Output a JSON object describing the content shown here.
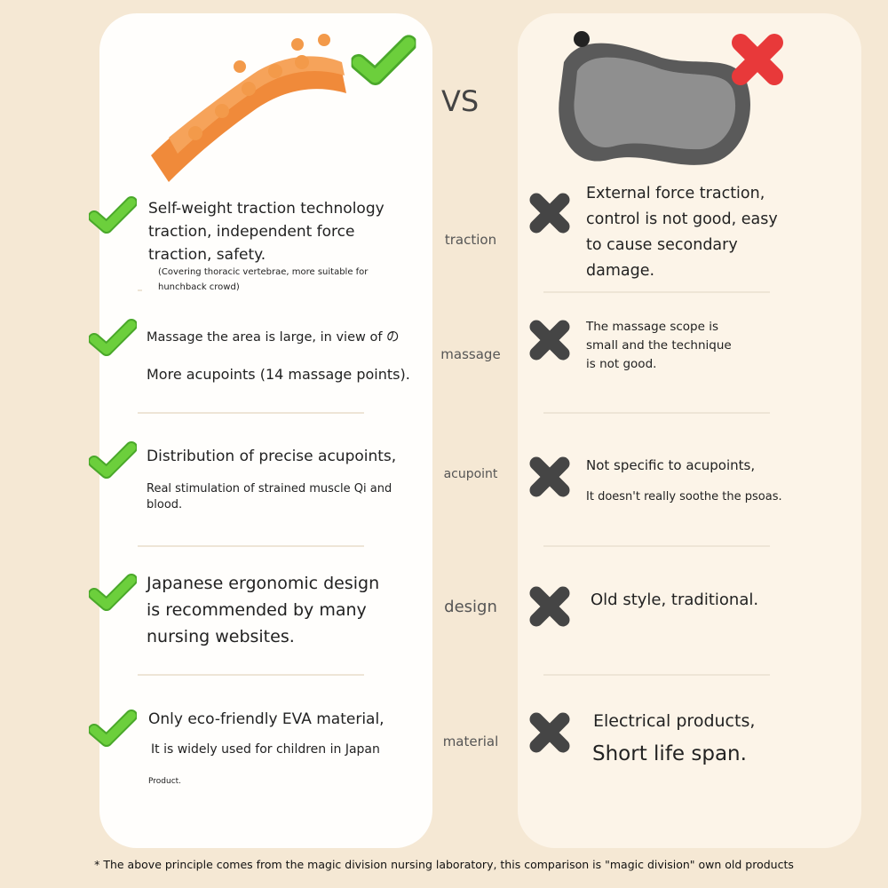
{
  "vs_label": "VS",
  "colors": {
    "background": "#f5e8d4",
    "check": "#5cc133",
    "cross": "#444444",
    "badge_cross": "#e8393a"
  },
  "left": {
    "product_image": "orange-spine-stretcher",
    "items": [
      {
        "icon": "check-icon",
        "main": "Self-weight traction technology traction, independent force traction, safety.",
        "sub": "(Covering thoracic vertebrae, more suitable for hunchback crowd)"
      },
      {
        "icon": "check-icon",
        "main": "Massage the area is large, in view of の",
        "sub": "More acupoints (14 massage points)."
      },
      {
        "icon": "check-icon",
        "main": "Distribution of precise acupoints,",
        "sub": "Real stimulation of strained muscle Qi and blood."
      },
      {
        "icon": "check-icon",
        "main": "Japanese ergonomic design is recommended by many nursing websites.",
        "sub": ""
      },
      {
        "icon": "check-icon",
        "main": "Only eco-friendly EVA material,",
        "sub": "It is widely used for children in Japan",
        "sub2": "Product."
      }
    ]
  },
  "categories": [
    "traction",
    "massage",
    "acupoint",
    "design",
    "material"
  ],
  "right": {
    "product_image": "gray-massage-pillow",
    "items": [
      {
        "icon": "cross-icon",
        "main": "External force traction, control is not good, easy to cause secondary damage."
      },
      {
        "icon": "cross-icon",
        "main": "The massage scope is small and the technique is not good."
      },
      {
        "icon": "cross-icon",
        "main": "Not specific to acupoints,",
        "sub": "It doesn't really soothe the psoas."
      },
      {
        "icon": "cross-icon",
        "main": "Old style, traditional."
      },
      {
        "icon": "cross-icon",
        "main": "Electrical products,",
        "sub": "Short life span."
      }
    ]
  },
  "footnote": "* The above principle comes from the magic division nursing laboratory, this comparison is \"magic division\" own old products"
}
